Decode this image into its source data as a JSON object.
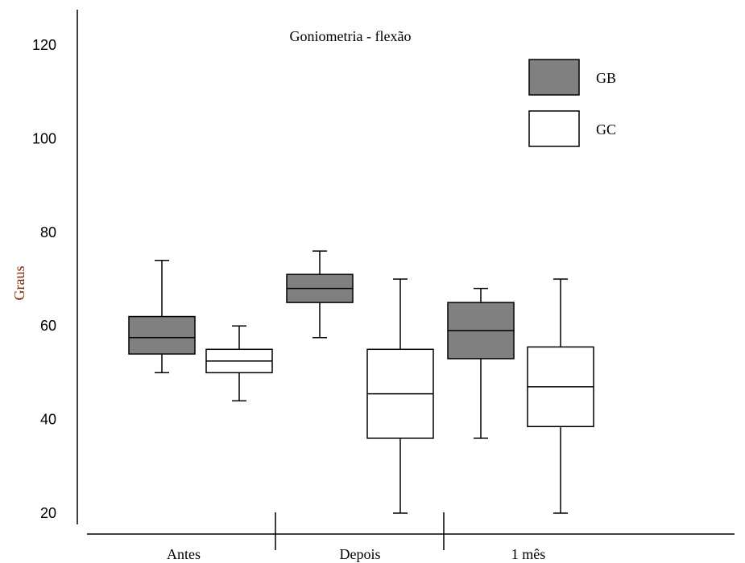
{
  "chart_data": {
    "type": "boxplot",
    "title": "Goniometria - flexão",
    "ylabel": "Graus",
    "xlabel": "",
    "ylim": [
      20,
      120
    ],
    "yticks": [
      20,
      40,
      60,
      80,
      100,
      120
    ],
    "grid": false,
    "legend_position": "top-right",
    "categories": [
      "Antes",
      "Depois",
      "1 mês"
    ],
    "series": [
      {
        "name": "GB",
        "color": "#808080",
        "boxes": [
          {
            "min": 50,
            "q1": 54,
            "median": 57.5,
            "q3": 62,
            "max": 74
          },
          {
            "min": 57.5,
            "q1": 65,
            "median": 68,
            "q3": 71,
            "max": 76
          },
          {
            "min": 36,
            "q1": 53,
            "median": 59,
            "q3": 65,
            "max": 68
          }
        ]
      },
      {
        "name": "GC",
        "color": "#ffffff",
        "boxes": [
          {
            "min": 44,
            "q1": 50,
            "median": 52.5,
            "q3": 55,
            "max": 60
          },
          {
            "min": 20,
            "q1": 36,
            "median": 45.5,
            "q3": 55,
            "max": 70
          },
          {
            "min": 20,
            "q1": 38.5,
            "median": 47,
            "q3": 55.5,
            "max": 70
          }
        ]
      }
    ]
  }
}
